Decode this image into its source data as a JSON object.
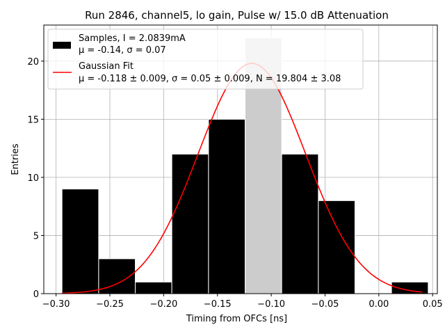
{
  "chart_data": {
    "type": "bar",
    "title": "Run 2846, channel5, lo gain, Pulse w/ 15.0 dB Attenuation",
    "xlabel": "Timing from OFCs [ns]",
    "ylabel": "Entries",
    "xlim": [
      -0.3114,
      0.0544
    ],
    "ylim": [
      0,
      23.1
    ],
    "xticks": [
      -0.3,
      -0.25,
      -0.2,
      -0.15,
      -0.1,
      -0.05,
      0.0,
      0.05
    ],
    "xtick_labels": [
      "−0.30",
      "−0.25",
      "−0.20",
      "−0.15",
      "−0.10",
      "−0.05",
      "0.00",
      "0.05"
    ],
    "yticks": [
      0,
      5,
      10,
      15,
      20
    ],
    "ytick_labels": [
      "0",
      "5",
      "10",
      "15",
      "20"
    ],
    "grid": true,
    "legend_position": "top-left",
    "histogram": {
      "bin_edges": [
        -0.2945,
        -0.2604,
        -0.2264,
        -0.1924,
        -0.1583,
        -0.1243,
        -0.0903,
        -0.0562,
        -0.0222,
        0.0118,
        0.0459
      ],
      "counts": [
        9,
        3,
        1,
        12,
        15,
        22,
        12,
        8,
        0,
        1
      ],
      "colors": [
        "#000000",
        "#000000",
        "#000000",
        "#000000",
        "#000000",
        "#cccccc",
        "#000000",
        "#000000",
        "#000000",
        "#000000"
      ]
    },
    "fit": {
      "mu": -0.118,
      "sigma": 0.05,
      "N": 19.804,
      "x_range": [
        -0.2945,
        0.0405
      ],
      "color": "#ff0000"
    },
    "legend": [
      {
        "line1": "Samples, I = 2.0839mA",
        "line2": "μ = -0.14, σ = 0.07",
        "swatch": "#000000"
      },
      {
        "line1": "Gaussian Fit",
        "line2": "μ = -0.118 ± 0.009, σ = 0.05 ± 0.009, N = 19.804 ± 3.08",
        "swatch": "#ff0000"
      }
    ]
  }
}
